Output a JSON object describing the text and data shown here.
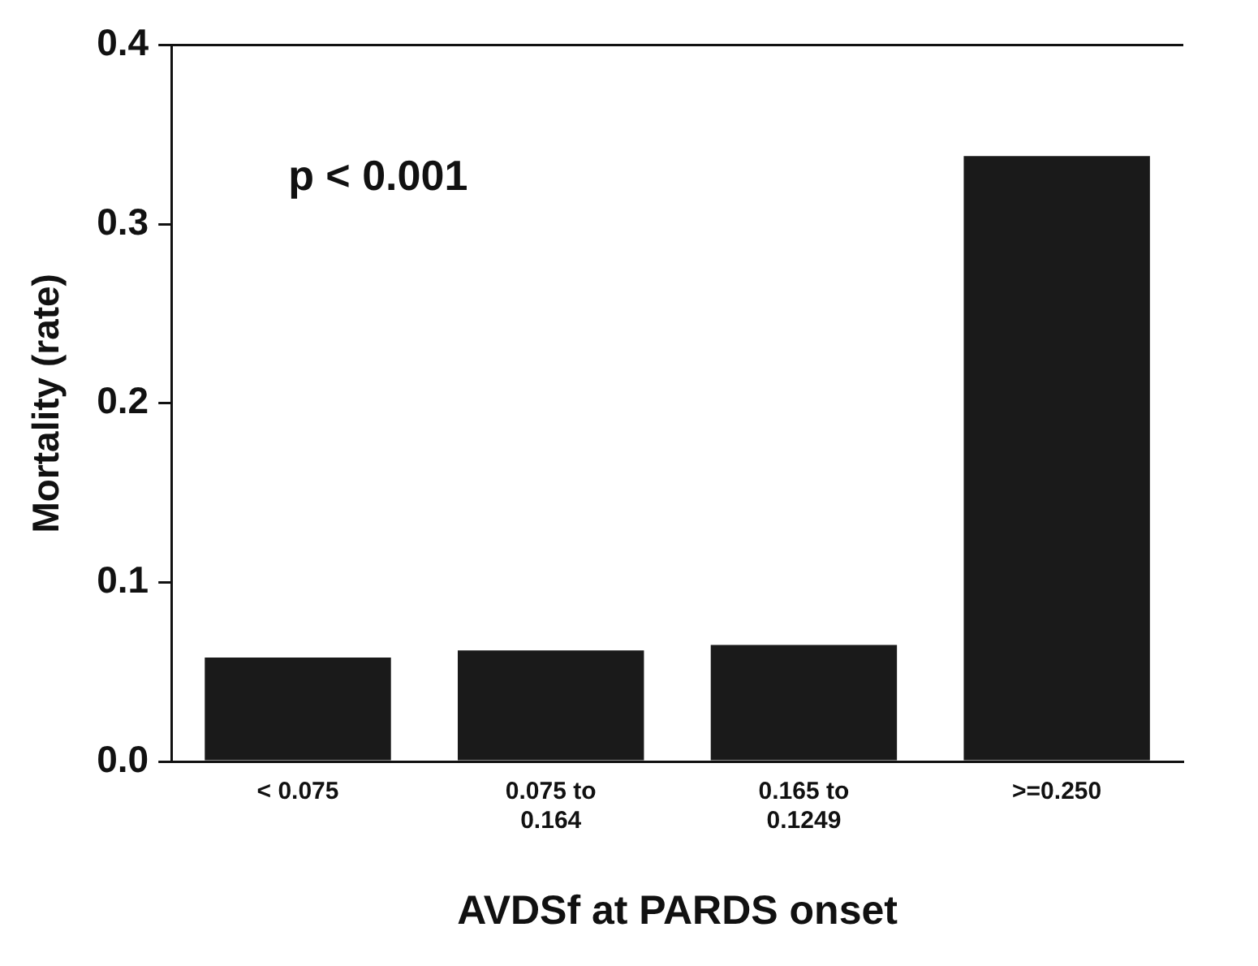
{
  "chart_data": {
    "type": "bar",
    "xlabel": "AVDSf at PARDS onset",
    "ylabel": "Mortality (rate)",
    "categories": [
      "< 0.075",
      "0.075 to 0.164",
      "0.165 to 0.1249",
      ">=0.250"
    ],
    "values": [
      0.058,
      0.062,
      0.065,
      0.338
    ],
    "color": "#1a1a1a",
    "ylim": [
      0,
      0.4
    ],
    "yticks": [
      {
        "value": 0,
        "label": "0.0"
      },
      0.1,
      0.2,
      0.3,
      0.4
    ],
    "annotations": [
      "p < 0.001"
    ]
  }
}
